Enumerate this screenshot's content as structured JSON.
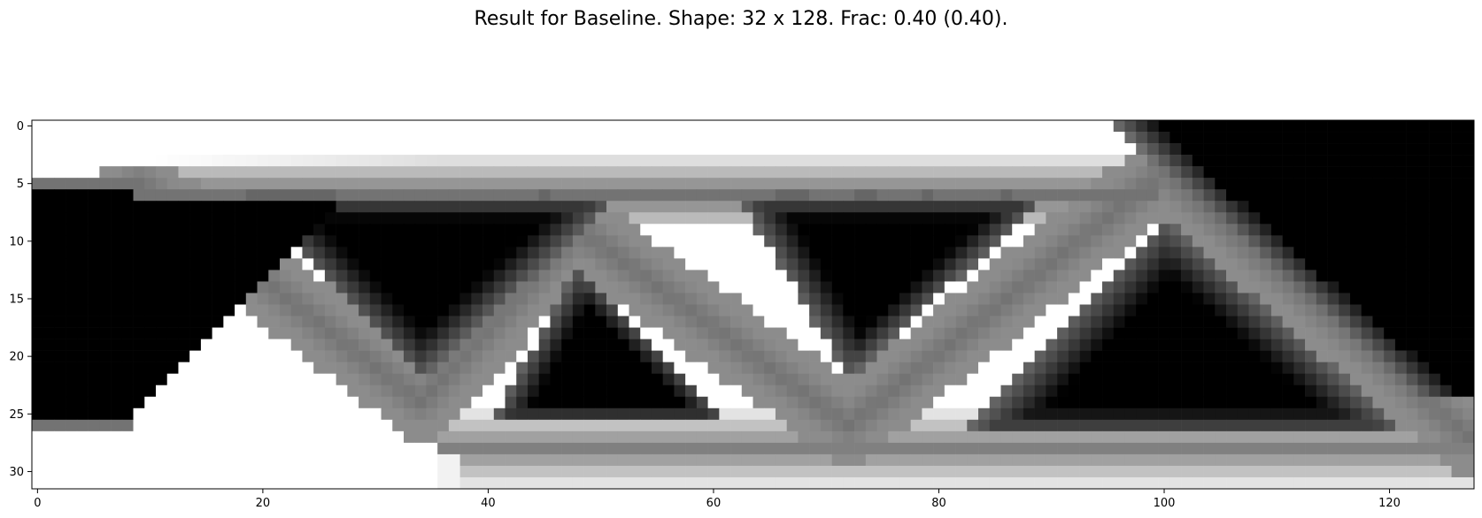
{
  "chart_data": {
    "type": "heatmap",
    "title": "Result for Baseline. Shape: 32 x 128. Frac: 0.40 (0.40).",
    "xlabel": "",
    "ylabel": "",
    "shape": [
      32,
      128
    ],
    "frac_text": "0.40 (0.40)",
    "colormap": "gray_r",
    "xlim": [
      -0.5,
      127.5
    ],
    "ylim": [
      31.5,
      -0.5
    ],
    "x_ticks": [
      0,
      20,
      40,
      60,
      80,
      100,
      120
    ],
    "y_ticks": [
      0,
      5,
      10,
      15,
      20,
      25,
      30
    ],
    "grid": false,
    "structure": {
      "description_note": "density field: 0 = void (white), 1 = solid (black)",
      "left_support_rows": [
        5,
        26
      ],
      "top_chord_rows": [
        5,
        7
      ],
      "bottom_chord_rows": [
        26,
        30
      ],
      "upper_right_block_start_col": 96,
      "struts": [
        {
          "from": [
            9,
            5
          ],
          "to": [
            34,
            24
          ]
        },
        {
          "from": [
            34,
            24
          ],
          "to": [
            48,
            9
          ]
        },
        {
          "from": [
            48,
            9
          ],
          "to": [
            72,
            26
          ]
        },
        {
          "from": [
            72,
            26
          ],
          "to": [
            100,
            4
          ]
        },
        {
          "from": [
            100,
            4
          ],
          "to": [
            127,
            27
          ]
        }
      ]
    }
  }
}
